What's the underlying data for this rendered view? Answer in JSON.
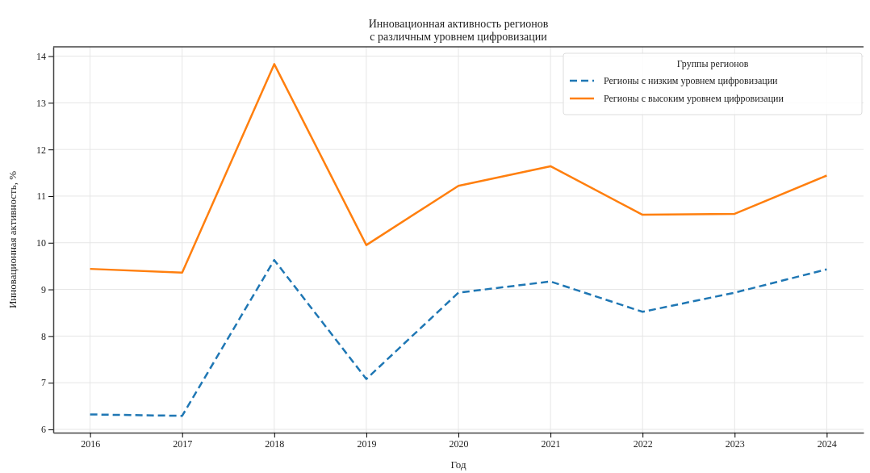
{
  "chart_data": {
    "type": "line",
    "title": "Инновационная активность регионов\nс различным уровнем цифровизации",
    "xlabel": "Год",
    "ylabel": "Инновационная активность, %",
    "legend_title": "Группы регионов",
    "legend": "top right",
    "grid": true,
    "x": [
      2016,
      2017,
      2018,
      2019,
      2020,
      2021,
      2022,
      2023,
      2024
    ],
    "xlim": [
      2015.6,
      2024.4
    ],
    "xticks": [
      2016,
      2017,
      2018,
      2019,
      2020,
      2021,
      2022,
      2023,
      2024
    ],
    "ylim": [
      5.93,
      14.2
    ],
    "yticks": [
      6,
      7,
      8,
      9,
      10,
      11,
      12,
      13,
      14
    ],
    "series": [
      {
        "name": "Регионы с низким уровнем цифровизации",
        "color": "#1f77b4",
        "line_style": "dashed",
        "values": [
          6.32,
          6.29,
          9.63,
          7.08,
          8.93,
          9.17,
          8.52,
          8.93,
          9.43
        ]
      },
      {
        "name": "Регионы с высоким уровнем цифровизации",
        "color": "#ff7f0e",
        "line_style": "solid",
        "values": [
          9.44,
          9.36,
          13.83,
          9.95,
          11.22,
          11.64,
          10.6,
          10.62,
          11.44
        ]
      }
    ]
  }
}
